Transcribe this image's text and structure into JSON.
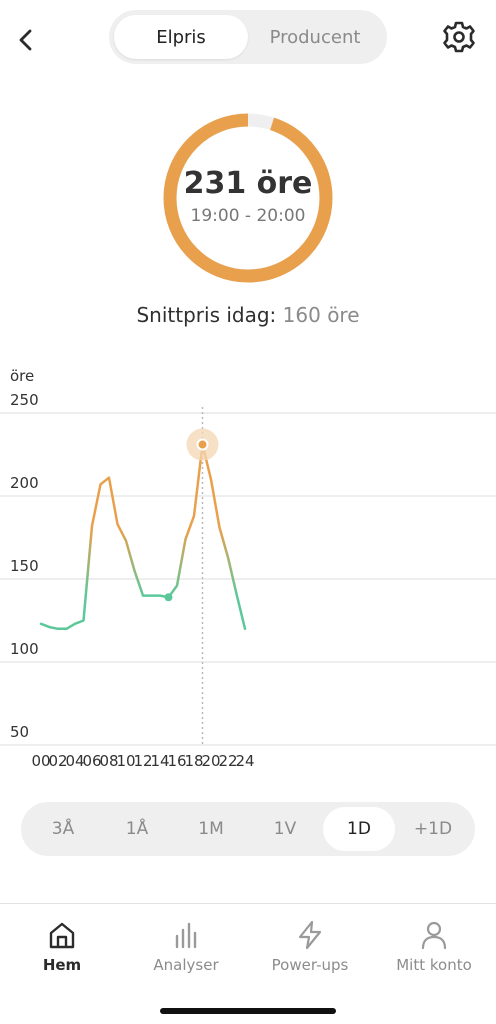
{
  "header": {
    "tabs": [
      {
        "label": "Elpris",
        "active": true
      },
      {
        "label": "Producent",
        "active": false
      }
    ]
  },
  "gauge": {
    "value_text": "231 öre",
    "time_range": "19:00 - 20:00",
    "fill_fraction": 0.95,
    "color": "#E8A04C",
    "track_color": "#EFEFEF"
  },
  "average": {
    "label": "Snittpris idag:",
    "value": "160 öre"
  },
  "chart_data": {
    "type": "line",
    "ylabel": "öre",
    "ylim": [
      50,
      250
    ],
    "yticks": [
      250,
      200,
      150,
      100,
      50
    ],
    "xticks": [
      "00",
      "02",
      "04",
      "06",
      "08",
      "10",
      "12",
      "14",
      "16",
      "18",
      "20",
      "22",
      "24"
    ],
    "x": [
      0,
      1,
      2,
      3,
      4,
      5,
      6,
      7,
      8,
      9,
      10,
      11,
      12,
      13,
      14,
      15,
      16,
      17,
      18,
      19,
      20,
      21,
      22,
      23,
      24
    ],
    "values": [
      123,
      121,
      120,
      120,
      123,
      125,
      182,
      207,
      211,
      183,
      173,
      155,
      140,
      140,
      140,
      139,
      146,
      174,
      188,
      231,
      210,
      181,
      163,
      141,
      120
    ],
    "highlight_x": 19,
    "current_x": 15,
    "low_color": "#5CC89A",
    "high_color": "#E8A04C"
  },
  "range_selector": {
    "options": [
      "3Å",
      "1Å",
      "1M",
      "1V",
      "1D",
      "+1D"
    ],
    "selected": "1D"
  },
  "nav": {
    "items": [
      {
        "label": "Hem",
        "icon": "home-icon",
        "active": true
      },
      {
        "label": "Analyser",
        "icon": "bar-chart-icon",
        "active": false
      },
      {
        "label": "Power-ups",
        "icon": "lightning-icon",
        "active": false
      },
      {
        "label": "Mitt konto",
        "icon": "user-icon",
        "active": false
      }
    ]
  }
}
